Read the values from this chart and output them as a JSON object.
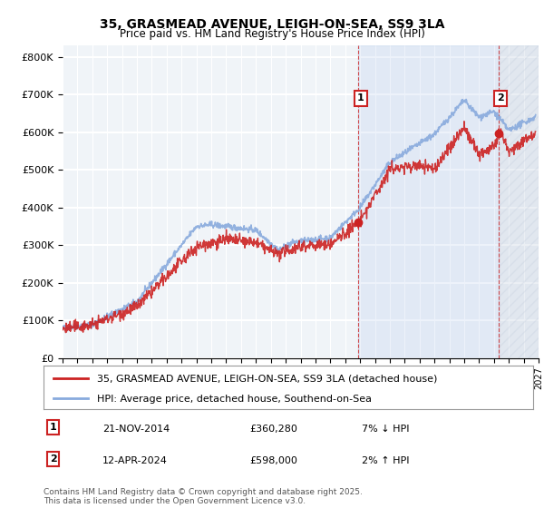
{
  "title": "35, GRASMEAD AVENUE, LEIGH-ON-SEA, SS9 3LA",
  "subtitle": "Price paid vs. HM Land Registry's House Price Index (HPI)",
  "background_color": "#f8f8f8",
  "plot_background": "#f0f4f8",
  "ylabel_ticks": [
    "£0",
    "£100K",
    "£200K",
    "£300K",
    "£400K",
    "£500K",
    "£600K",
    "£700K",
    "£800K"
  ],
  "ytick_values": [
    0,
    100000,
    200000,
    300000,
    400000,
    500000,
    600000,
    700000,
    800000
  ],
  "ylim": [
    0,
    830000
  ],
  "xlim_start": 1995,
  "xlim_end": 2027,
  "grid_color": "#ffffff",
  "annotation1": {
    "label": "1",
    "date": "21-NOV-2014",
    "price": "£360,280",
    "hpi_change": "7% ↓ HPI",
    "x": 2014.9
  },
  "annotation2": {
    "label": "2",
    "date": "12-APR-2024",
    "price": "£598,000",
    "hpi_change": "2% ↑ HPI",
    "x": 2024.3
  },
  "legend_line1": "35, GRASMEAD AVENUE, LEIGH-ON-SEA, SS9 3LA (detached house)",
  "legend_line2": "HPI: Average price, detached house, Southend-on-Sea",
  "footer": "Contains HM Land Registry data © Crown copyright and database right 2025.\nThis data is licensed under the Open Government Licence v3.0.",
  "red_color": "#cc2222",
  "blue_color": "#88aadd",
  "vline_color": "#cc2222",
  "hatch_color": "#c8d4e8"
}
